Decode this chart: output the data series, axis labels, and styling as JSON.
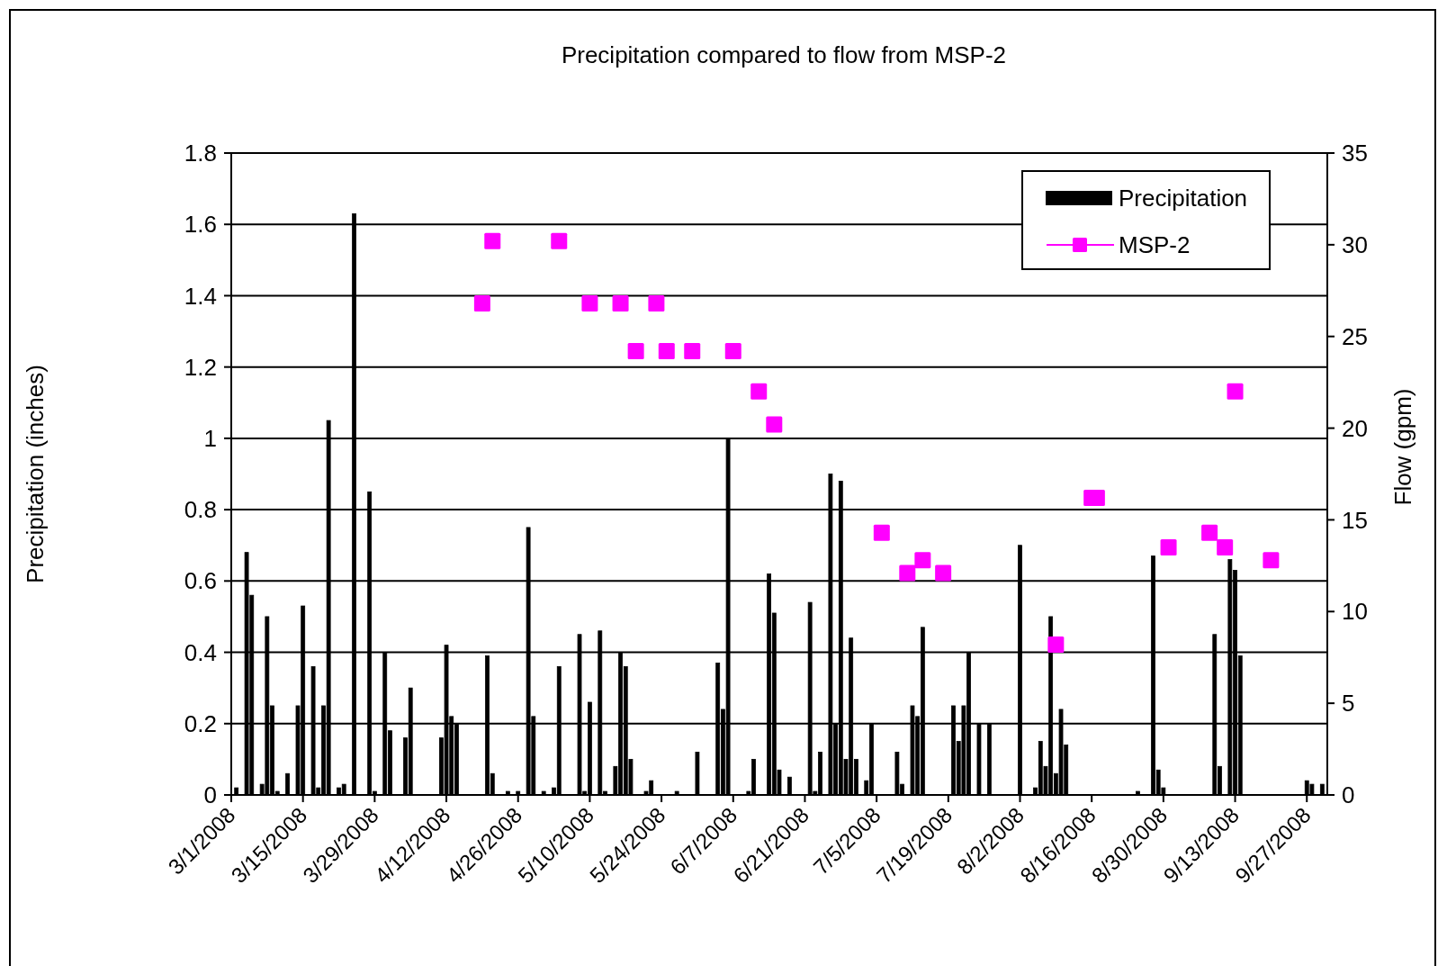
{
  "chart_data": {
    "type": "bar",
    "title": "Precipitation compared to flow from MSP-2",
    "ylabel": "Precipitation (inches)",
    "y2label": "Flow (gpm)",
    "xlim": [
      "2008-03-01",
      "2008-10-01"
    ],
    "xticks": [
      {
        "value": "2008-03-01",
        "label": "3/1/2008"
      },
      {
        "value": "2008-03-15",
        "label": "3/15/2008"
      },
      {
        "value": "2008-03-29",
        "label": "3/29/2008"
      },
      {
        "value": "2008-04-12",
        "label": "4/12/2008"
      },
      {
        "value": "2008-04-26",
        "label": "4/26/2008"
      },
      {
        "value": "2008-05-10",
        "label": "5/10/2008"
      },
      {
        "value": "2008-05-24",
        "label": "5/24/2008"
      },
      {
        "value": "2008-06-07",
        "label": "6/7/2008"
      },
      {
        "value": "2008-06-21",
        "label": "6/21/2008"
      },
      {
        "value": "2008-07-05",
        "label": "7/5/2008"
      },
      {
        "value": "2008-07-19",
        "label": "7/19/2008"
      },
      {
        "value": "2008-08-02",
        "label": "8/2/2008"
      },
      {
        "value": "2008-08-16",
        "label": "8/16/2008"
      },
      {
        "value": "2008-08-30",
        "label": "8/30/2008"
      },
      {
        "value": "2008-09-13",
        "label": "9/13/2008"
      },
      {
        "value": "2008-09-27",
        "label": "9/27/2008"
      }
    ],
    "ylim": [
      0,
      1.8
    ],
    "yticks": [
      0,
      0.2,
      0.4,
      0.6,
      0.8,
      1,
      1.2,
      1.4,
      1.6,
      1.8
    ],
    "y2lim": [
      0,
      35
    ],
    "y2ticks": [
      0,
      5,
      10,
      15,
      20,
      25,
      30,
      35
    ],
    "grid": "y",
    "legend": "top right",
    "marker": "square",
    "series": [
      {
        "name": "Precipitation",
        "color": "#000000",
        "x": [
          "2008-03-02",
          "2008-03-04",
          "2008-03-05",
          "2008-03-07",
          "2008-03-08",
          "2008-03-09",
          "2008-03-10",
          "2008-03-12",
          "2008-03-14",
          "2008-03-15",
          "2008-03-17",
          "2008-03-18",
          "2008-03-19",
          "2008-03-20",
          "2008-03-22",
          "2008-03-23",
          "2008-03-25",
          "2008-03-28",
          "2008-03-29",
          "2008-03-31",
          "2008-04-01",
          "2008-04-04",
          "2008-04-05",
          "2008-04-11",
          "2008-04-12",
          "2008-04-13",
          "2008-04-14",
          "2008-04-20",
          "2008-04-21",
          "2008-04-24",
          "2008-04-26",
          "2008-04-28",
          "2008-04-29",
          "2008-05-01",
          "2008-05-03",
          "2008-05-04",
          "2008-05-08",
          "2008-05-09",
          "2008-05-10",
          "2008-05-12",
          "2008-05-13",
          "2008-05-15",
          "2008-05-16",
          "2008-05-17",
          "2008-05-18",
          "2008-05-21",
          "2008-05-22",
          "2008-05-27",
          "2008-05-31",
          "2008-06-04",
          "2008-06-05",
          "2008-06-06",
          "2008-06-10",
          "2008-06-11",
          "2008-06-14",
          "2008-06-15",
          "2008-06-16",
          "2008-06-18",
          "2008-06-22",
          "2008-06-23",
          "2008-06-24",
          "2008-06-26",
          "2008-06-27",
          "2008-06-28",
          "2008-06-29",
          "2008-06-30",
          "2008-07-01",
          "2008-07-03",
          "2008-07-04",
          "2008-07-09",
          "2008-07-10",
          "2008-07-12",
          "2008-07-13",
          "2008-07-14",
          "2008-07-20",
          "2008-07-21",
          "2008-07-22",
          "2008-07-23",
          "2008-07-25",
          "2008-07-27",
          "2008-08-02",
          "2008-08-05",
          "2008-08-06",
          "2008-08-07",
          "2008-08-08",
          "2008-08-09",
          "2008-08-10",
          "2008-08-11",
          "2008-08-25",
          "2008-08-28",
          "2008-08-29",
          "2008-08-30",
          "2008-09-09",
          "2008-09-10",
          "2008-09-12",
          "2008-09-13",
          "2008-09-14",
          "2008-09-27",
          "2008-09-28",
          "2008-09-30"
        ],
        "values": [
          0.02,
          0.68,
          0.56,
          0.03,
          0.5,
          0.25,
          0.01,
          0.06,
          0.25,
          0.53,
          0.36,
          0.02,
          0.25,
          1.05,
          0.02,
          0.03,
          1.63,
          0.85,
          0.01,
          0.4,
          0.18,
          0.16,
          0.3,
          0.16,
          0.42,
          0.22,
          0.2,
          0.39,
          0.06,
          0.01,
          0.01,
          0.75,
          0.22,
          0.01,
          0.02,
          0.36,
          0.45,
          0.01,
          0.26,
          0.46,
          0.01,
          0.08,
          0.4,
          0.36,
          0.1,
          0.01,
          0.04,
          0.01,
          0.12,
          0.37,
          0.24,
          1,
          0.01,
          0.1,
          0.62,
          0.51,
          0.07,
          0.05,
          0.54,
          0.01,
          0.12,
          0.9,
          0.2,
          0.88,
          0.1,
          0.44,
          0.1,
          0.04,
          0.2,
          0.12,
          0.03,
          0.25,
          0.22,
          0.47,
          0.25,
          0.15,
          0.25,
          0.4,
          0.2,
          0.2,
          0.7,
          0.02,
          0.15,
          0.08,
          0.5,
          0.06,
          0.24,
          0.14,
          0.01,
          0.67,
          0.07,
          0.02,
          0.45,
          0.08,
          0.66,
          0.63,
          0.39,
          0.04,
          0.03,
          0.03
        ]
      },
      {
        "name": "MSP-2",
        "type": "scatter",
        "axis": "y2",
        "color": "#ff00ff",
        "x": [
          "2008-04-19",
          "2008-04-21",
          "2008-05-04",
          "2008-05-10",
          "2008-05-16",
          "2008-05-19",
          "2008-05-23",
          "2008-05-25",
          "2008-05-30",
          "2008-06-07",
          "2008-06-12",
          "2008-06-15",
          "2008-07-06",
          "2008-07-11",
          "2008-07-14",
          "2008-07-18",
          "2008-08-09",
          "2008-08-16",
          "2008-08-17",
          "2008-08-31",
          "2008-09-08",
          "2008-09-11",
          "2008-09-13",
          "2008-09-20"
        ],
        "values": [
          26.8,
          30.2,
          30.2,
          26.8,
          26.8,
          24.2,
          26.8,
          24.2,
          24.2,
          24.2,
          22,
          20.2,
          14.3,
          12.1,
          12.8,
          12.1,
          8.2,
          16.2,
          16.2,
          13.5,
          14.3,
          13.5,
          22,
          12.8
        ]
      }
    ]
  }
}
